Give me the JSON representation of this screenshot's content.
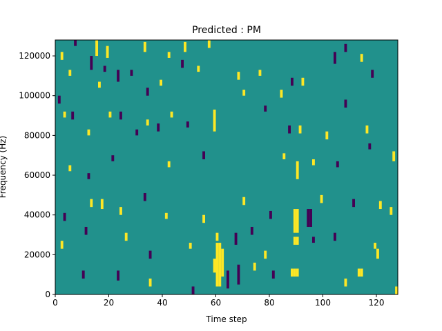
{
  "colors": {
    "background": "#21918c",
    "low": "#440154",
    "high": "#fde725",
    "axis": "#000000"
  },
  "chart_data": {
    "type": "heatmap",
    "title": "Predicted : PM",
    "xlabel": "Time step",
    "ylabel": "Frequency (Hz)",
    "xlim": [
      0,
      128
    ],
    "ylim": [
      0,
      128000
    ],
    "cell_height_hz": 1000,
    "x_ticks": [
      0,
      20,
      40,
      60,
      80,
      100,
      120
    ],
    "x_tick_labels": [
      "0",
      "20",
      "40",
      "60",
      "80",
      "100",
      "120"
    ],
    "y_ticks": [
      0,
      20000,
      40000,
      60000,
      80000,
      100000,
      120000
    ],
    "y_tick_labels": [
      "0",
      "20000",
      "40000",
      "60000",
      "80000",
      "100000",
      "120000"
    ],
    "colormap": "viridis",
    "background_value": 0,
    "grid": false,
    "cells": [
      {
        "x": 60,
        "y0": 4000,
        "y1": 26000,
        "value": 1
      },
      {
        "x": 61,
        "y0": 4000,
        "y1": 26000,
        "value": 1
      },
      {
        "x": 62,
        "y0": 9000,
        "y1": 23000,
        "value": 1
      },
      {
        "x": 59,
        "y0": 11000,
        "y1": 18000,
        "value": 1
      },
      {
        "x": 60,
        "y0": 27000,
        "y1": 31000,
        "value": 1
      },
      {
        "x": 59,
        "y0": 82000,
        "y1": 93000,
        "value": 1
      },
      {
        "x": 88,
        "y0": 9000,
        "y1": 13000,
        "value": 1
      },
      {
        "x": 89,
        "y0": 25000,
        "y1": 29000,
        "value": 1
      },
      {
        "x": 90,
        "y0": 25000,
        "y1": 29000,
        "value": 1
      },
      {
        "x": 89,
        "y0": 31000,
        "y1": 43000,
        "value": 1
      },
      {
        "x": 90,
        "y0": 31000,
        "y1": 43000,
        "value": 1
      },
      {
        "x": 90,
        "y0": 58000,
        "y1": 67000,
        "value": 1
      },
      {
        "x": 89,
        "y0": 9000,
        "y1": 13000,
        "value": 1
      },
      {
        "x": 90,
        "y0": 9000,
        "y1": 13000,
        "value": 1
      },
      {
        "x": 17,
        "y0": 43000,
        "y1": 48000,
        "value": 1
      },
      {
        "x": 113,
        "y0": 9000,
        "y1": 13000,
        "value": 1
      },
      {
        "x": 114,
        "y0": 9000,
        "y1": 13000,
        "value": 1
      },
      {
        "x": 120,
        "y0": 18000,
        "y1": 23000,
        "value": 1
      },
      {
        "x": 121,
        "y0": 43000,
        "y1": 47000,
        "value": 1
      },
      {
        "x": 64,
        "y0": 3000,
        "y1": 12000,
        "value": -1
      },
      {
        "x": 68,
        "y0": 5000,
        "y1": 15000,
        "value": -1
      },
      {
        "x": 67,
        "y0": 25000,
        "y1": 31000,
        "value": -1
      },
      {
        "x": 23,
        "y0": 7000,
        "y1": 12000,
        "value": -1
      },
      {
        "x": 94,
        "y0": 34000,
        "y1": 43000,
        "value": -1
      },
      {
        "x": 95,
        "y0": 34000,
        "y1": 43000,
        "value": -1
      },
      {
        "x": 96,
        "y0": 26000,
        "y1": 29000,
        "value": -1
      },
      {
        "x": 104,
        "y0": 116000,
        "y1": 122000,
        "value": -1
      },
      {
        "x": 13,
        "y0": 113000,
        "y1": 120000,
        "value": -1
      },
      {
        "x": 23,
        "y0": 107000,
        "y1": 113000,
        "value": -1
      },
      {
        "x": 2,
        "y0": 118000,
        "y1": 122000,
        "value": 1
      },
      {
        "x": 5,
        "y0": 110000,
        "y1": 113000,
        "value": 1
      },
      {
        "x": 7,
        "y0": 125000,
        "y1": 128000,
        "value": -1
      },
      {
        "x": 15,
        "y0": 120000,
        "y1": 128000,
        "value": 1
      },
      {
        "x": 16,
        "y0": 104000,
        "y1": 107000,
        "value": 1
      },
      {
        "x": 18,
        "y0": 112000,
        "y1": 115000,
        "value": -1
      },
      {
        "x": 19,
        "y0": 119000,
        "y1": 125000,
        "value": 1
      },
      {
        "x": 28,
        "y0": 110000,
        "y1": 113000,
        "value": -1
      },
      {
        "x": 33,
        "y0": 122000,
        "y1": 127000,
        "value": 1
      },
      {
        "x": 34,
        "y0": 100000,
        "y1": 104000,
        "value": -1
      },
      {
        "x": 39,
        "y0": 105000,
        "y1": 108000,
        "value": 1
      },
      {
        "x": 42,
        "y0": 119000,
        "y1": 122000,
        "value": 1
      },
      {
        "x": 47,
        "y0": 114000,
        "y1": 118000,
        "value": -1
      },
      {
        "x": 48,
        "y0": 122000,
        "y1": 127000,
        "value": 1
      },
      {
        "x": 53,
        "y0": 112000,
        "y1": 115000,
        "value": 1
      },
      {
        "x": 57,
        "y0": 124000,
        "y1": 128000,
        "value": 1
      },
      {
        "x": 68,
        "y0": 108000,
        "y1": 112000,
        "value": 1
      },
      {
        "x": 70,
        "y0": 100000,
        "y1": 103000,
        "value": 1
      },
      {
        "x": 76,
        "y0": 110000,
        "y1": 113000,
        "value": 1
      },
      {
        "x": 84,
        "y0": 99000,
        "y1": 103000,
        "value": 1
      },
      {
        "x": 88,
        "y0": 105000,
        "y1": 109000,
        "value": -1
      },
      {
        "x": 92,
        "y0": 105000,
        "y1": 109000,
        "value": 1
      },
      {
        "x": 108,
        "y0": 122000,
        "y1": 126000,
        "value": -1
      },
      {
        "x": 114,
        "y0": 117000,
        "y1": 121000,
        "value": 1
      },
      {
        "x": 118,
        "y0": 109000,
        "y1": 113000,
        "value": -1
      },
      {
        "x": 1,
        "y0": 96000,
        "y1": 100000,
        "value": -1
      },
      {
        "x": 3,
        "y0": 89000,
        "y1": 92000,
        "value": 1
      },
      {
        "x": 6,
        "y0": 88000,
        "y1": 92000,
        "value": -1
      },
      {
        "x": 12,
        "y0": 80000,
        "y1": 83000,
        "value": 1
      },
      {
        "x": 20,
        "y0": 89000,
        "y1": 92000,
        "value": 1
      },
      {
        "x": 24,
        "y0": 88000,
        "y1": 92000,
        "value": -1
      },
      {
        "x": 30,
        "y0": 80000,
        "y1": 83000,
        "value": -1
      },
      {
        "x": 34,
        "y0": 85000,
        "y1": 88000,
        "value": 1
      },
      {
        "x": 38,
        "y0": 82000,
        "y1": 86000,
        "value": -1
      },
      {
        "x": 43,
        "y0": 89000,
        "y1": 92000,
        "value": 1
      },
      {
        "x": 49,
        "y0": 84000,
        "y1": 87000,
        "value": -1
      },
      {
        "x": 78,
        "y0": 92000,
        "y1": 95000,
        "value": -1
      },
      {
        "x": 87,
        "y0": 81000,
        "y1": 85000,
        "value": -1
      },
      {
        "x": 91,
        "y0": 81000,
        "y1": 85000,
        "value": 1
      },
      {
        "x": 101,
        "y0": 78000,
        "y1": 82000,
        "value": 1
      },
      {
        "x": 108,
        "y0": 94000,
        "y1": 98000,
        "value": -1
      },
      {
        "x": 116,
        "y0": 81000,
        "y1": 85000,
        "value": 1
      },
      {
        "x": 126,
        "y0": 67000,
        "y1": 72000,
        "value": 1
      },
      {
        "x": 5,
        "y0": 62000,
        "y1": 65000,
        "value": 1
      },
      {
        "x": 12,
        "y0": 58000,
        "y1": 61000,
        "value": -1
      },
      {
        "x": 21,
        "y0": 67000,
        "y1": 70000,
        "value": -1
      },
      {
        "x": 42,
        "y0": 64000,
        "y1": 67000,
        "value": 1
      },
      {
        "x": 55,
        "y0": 68000,
        "y1": 72000,
        "value": -1
      },
      {
        "x": 85,
        "y0": 68000,
        "y1": 71000,
        "value": 1
      },
      {
        "x": 96,
        "y0": 65000,
        "y1": 68000,
        "value": 1
      },
      {
        "x": 105,
        "y0": 64000,
        "y1": 67000,
        "value": -1
      },
      {
        "x": 117,
        "y0": 73000,
        "y1": 76000,
        "value": -1
      },
      {
        "x": 3,
        "y0": 37000,
        "y1": 41000,
        "value": -1
      },
      {
        "x": 13,
        "y0": 44000,
        "y1": 48000,
        "value": 1
      },
      {
        "x": 24,
        "y0": 40000,
        "y1": 44000,
        "value": 1
      },
      {
        "x": 33,
        "y0": 47000,
        "y1": 51000,
        "value": -1
      },
      {
        "x": 41,
        "y0": 38000,
        "y1": 41000,
        "value": 1
      },
      {
        "x": 55,
        "y0": 36000,
        "y1": 40000,
        "value": 1
      },
      {
        "x": 70,
        "y0": 45000,
        "y1": 49000,
        "value": 1
      },
      {
        "x": 80,
        "y0": 38000,
        "y1": 42000,
        "value": -1
      },
      {
        "x": 99,
        "y0": 46000,
        "y1": 50000,
        "value": 1
      },
      {
        "x": 111,
        "y0": 44000,
        "y1": 48000,
        "value": -1
      },
      {
        "x": 125,
        "y0": 40000,
        "y1": 44000,
        "value": 1
      },
      {
        "x": 2,
        "y0": 23000,
        "y1": 27000,
        "value": 1
      },
      {
        "x": 11,
        "y0": 30000,
        "y1": 34000,
        "value": -1
      },
      {
        "x": 26,
        "y0": 27000,
        "y1": 31000,
        "value": 1
      },
      {
        "x": 35,
        "y0": 18000,
        "y1": 22000,
        "value": -1
      },
      {
        "x": 50,
        "y0": 23000,
        "y1": 26000,
        "value": 1
      },
      {
        "x": 73,
        "y0": 30000,
        "y1": 34000,
        "value": -1
      },
      {
        "x": 78,
        "y0": 18000,
        "y1": 22000,
        "value": 1
      },
      {
        "x": 104,
        "y0": 27000,
        "y1": 31000,
        "value": -1
      },
      {
        "x": 119,
        "y0": 23000,
        "y1": 26000,
        "value": 1
      },
      {
        "x": 10,
        "y0": 8000,
        "y1": 12000,
        "value": -1
      },
      {
        "x": 35,
        "y0": 4000,
        "y1": 8000,
        "value": 1
      },
      {
        "x": 51,
        "y0": 0,
        "y1": 4000,
        "value": -1
      },
      {
        "x": 74,
        "y0": 12000,
        "y1": 16000,
        "value": 1
      },
      {
        "x": 81,
        "y0": 8000,
        "y1": 12000,
        "value": -1
      },
      {
        "x": 108,
        "y0": 4000,
        "y1": 8000,
        "value": 1
      },
      {
        "x": 127,
        "y0": 0,
        "y1": 4000,
        "value": 1
      }
    ]
  }
}
